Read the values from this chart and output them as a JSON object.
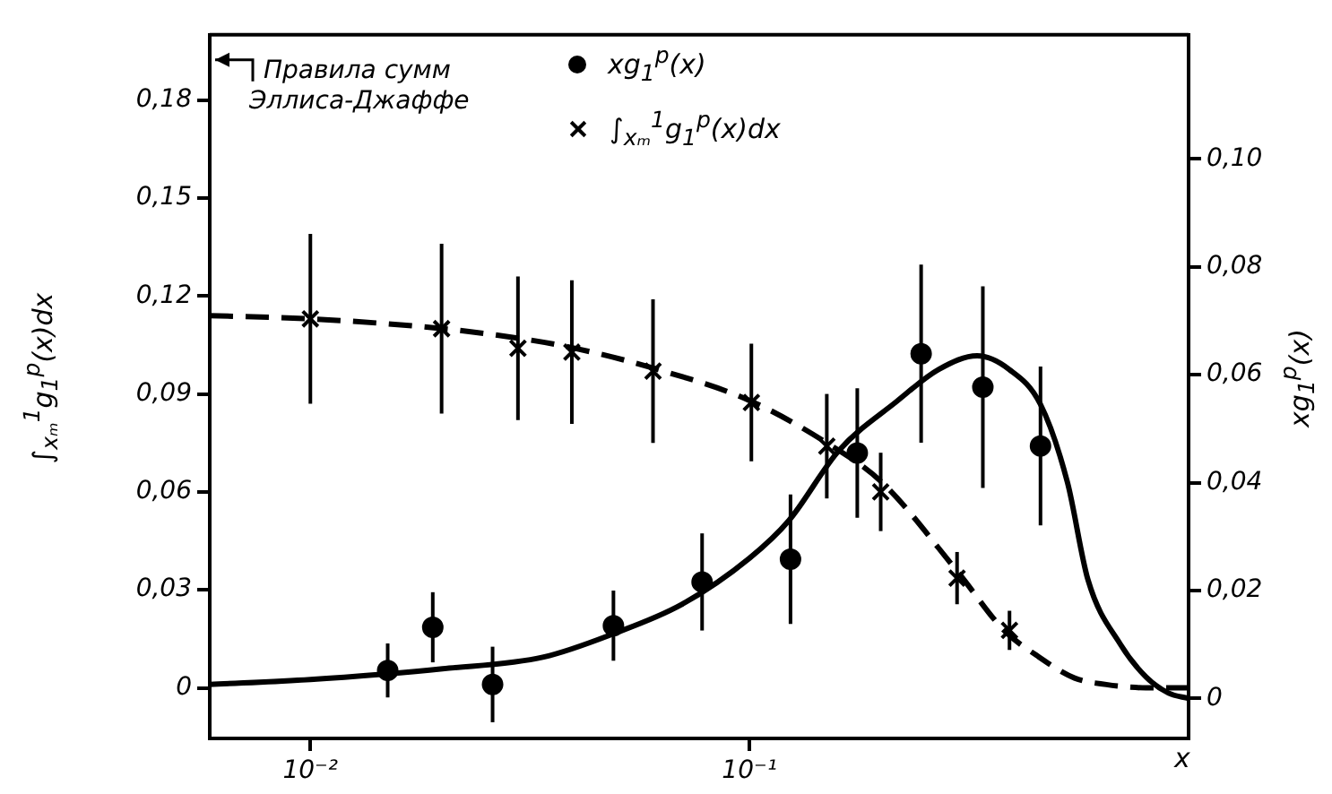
{
  "chart_data": {
    "type": "scatter",
    "ylabel": "∫$_{xₘ}$$^{1}$g$_{1}$$^{p}$(x)dx",
    "y2label": "xg$_{1}$$^{p}$(x)",
    "xlabel": "x",
    "annotations": [
      "Правила сумм Эллиса-Джаффе"
    ],
    "log": "x",
    "legend": "top",
    "xlim": [
      0.0059,
      1
    ],
    "xticks": [
      {
        "value": 0.01,
        "label": "10⁻²"
      },
      {
        "value": 0.1,
        "label": "10⁻¹"
      }
    ],
    "ylim": [
      -0.0155,
      0.2
    ],
    "yticks": [
      0,
      {
        "value": 0.03,
        "label": "0,03"
      },
      {
        "value": 0.06,
        "label": "0,06"
      },
      {
        "value": 0.09,
        "label": "0,09"
      },
      {
        "value": 0.12,
        "label": "0,12"
      },
      {
        "value": 0.15,
        "label": "0,15"
      },
      {
        "value": 0.18,
        "label": "0,18"
      }
    ],
    "y2lim": [
      -0.0074,
      0.123
    ],
    "y2ticks": [
      0,
      {
        "value": 0.02,
        "label": "0,02"
      },
      {
        "value": 0.04,
        "label": "0,04"
      },
      {
        "value": 0.06,
        "label": "0,06"
      },
      {
        "value": 0.08,
        "label": "0,08"
      },
      {
        "value": 0.1,
        "label": "0,10"
      }
    ],
    "series": [
      {
        "name": "xg$_{1}$$^{p}$(x)",
        "axis": "y2",
        "marker": "circle",
        "color": "#000000",
        "x": [
          0.015,
          0.019,
          0.026,
          0.049,
          0.078,
          0.124,
          0.176,
          0.246,
          0.34,
          0.46
        ],
        "values": [
          0.0052,
          0.0132,
          0.0026,
          0.0135,
          0.0216,
          0.0258,
          0.0455,
          0.0639,
          0.0577,
          0.0468
        ],
        "errors": [
          0.005,
          0.0065,
          0.007,
          0.0065,
          0.009,
          0.012,
          0.012,
          0.0165,
          0.0187,
          0.0147
        ]
      },
      {
        "name": "∫$_{xₘ}$$^{1}$g$_{1}$$^{p}$(x)dx",
        "axis": "y",
        "marker": "cross",
        "color": "#000000",
        "x": [
          0.01,
          0.0199,
          0.0297,
          0.0394,
          0.0603,
          0.101,
          0.15,
          0.199,
          0.297,
          0.391
        ],
        "values": [
          0.113,
          0.11,
          0.104,
          0.1028,
          0.097,
          0.0874,
          0.074,
          0.06,
          0.0336,
          0.0176
        ],
        "errors": [
          0.026,
          0.026,
          0.022,
          0.022,
          0.022,
          0.018,
          0.016,
          0.012,
          0.008,
          0.006
        ]
      },
      {
        "type": "line",
        "axis": "y2",
        "marker": "none",
        "line_style": "solid",
        "color": "#000000",
        "x": [
          0.0059,
          0.01,
          0.0147,
          0.02,
          0.034,
          0.049,
          0.07,
          0.1,
          0.123,
          0.16,
          0.216,
          0.27,
          0.33,
          0.39,
          0.46,
          0.53,
          0.59,
          0.7,
          0.8,
          0.9,
          1
        ],
        "values": [
          0.0026,
          0.0035,
          0.0045,
          0.0055,
          0.0077,
          0.012,
          0.0174,
          0.026,
          0.033,
          0.046,
          0.055,
          0.061,
          0.0635,
          0.061,
          0.0545,
          0.04,
          0.022,
          0.01,
          0.004,
          0.001,
          0
        ]
      },
      {
        "type": "line",
        "axis": "y",
        "marker": "none",
        "line_style": "dashed",
        "color": "#000000",
        "x": [
          0.0059,
          0.01,
          0.02,
          0.03,
          0.04,
          0.06,
          0.1,
          0.15,
          0.2,
          0.3,
          0.38,
          0.45,
          0.55,
          0.65,
          0.8,
          1
        ],
        "values": [
          0.114,
          0.113,
          0.11,
          0.107,
          0.104,
          0.098,
          0.088,
          0.075,
          0.063,
          0.035,
          0.0176,
          0.01,
          0.003,
          0.001,
          0,
          0
        ]
      }
    ]
  }
}
